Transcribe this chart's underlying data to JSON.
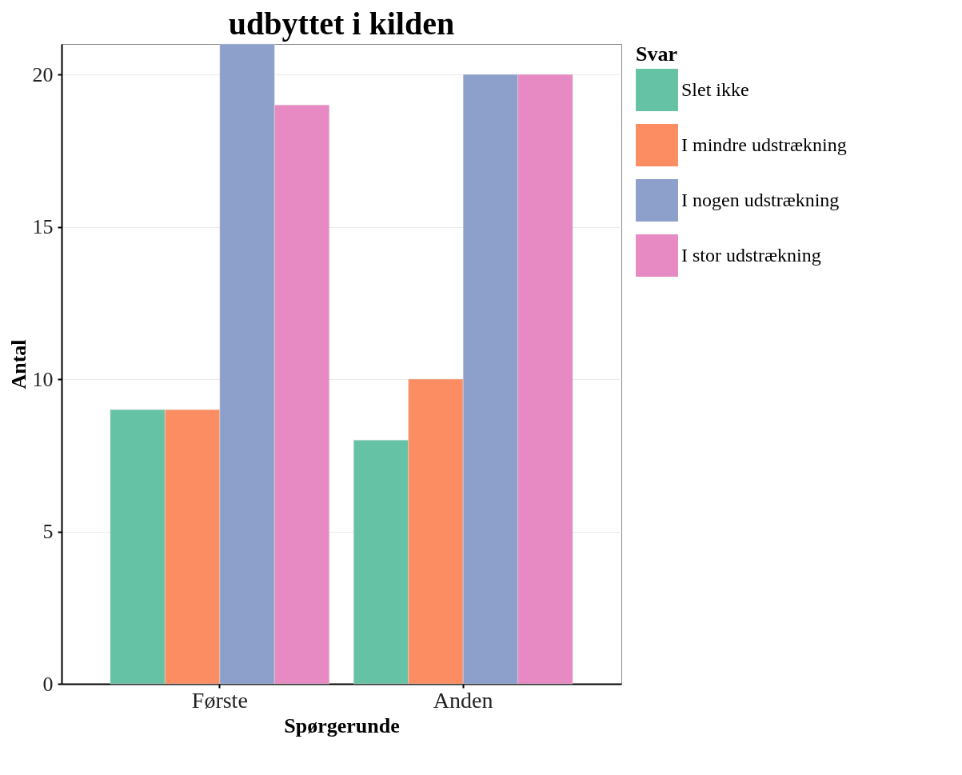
{
  "chart_data": {
    "type": "bar",
    "title": "udbyttet i kilden",
    "xlabel": "Spørgerunde",
    "ylabel": "Antal",
    "legend_title": "Svar",
    "categories": [
      "Første",
      "Anden"
    ],
    "series": [
      {
        "name": "Slet ikke",
        "color": "#66c2a5",
        "values": [
          9,
          8
        ]
      },
      {
        "name": "I mindre udstrækning",
        "color": "#fc8d62",
        "values": [
          9,
          10
        ]
      },
      {
        "name": "I nogen udstrækning",
        "color": "#8da0cb",
        "values": [
          21,
          20
        ]
      },
      {
        "name": "I stor udstrækning",
        "color": "#e78ac3",
        "values": [
          19,
          20
        ]
      }
    ],
    "ylim": [
      0,
      21
    ],
    "yticks": [
      0,
      5,
      10,
      15,
      20
    ],
    "grid": true,
    "legend": "right"
  }
}
